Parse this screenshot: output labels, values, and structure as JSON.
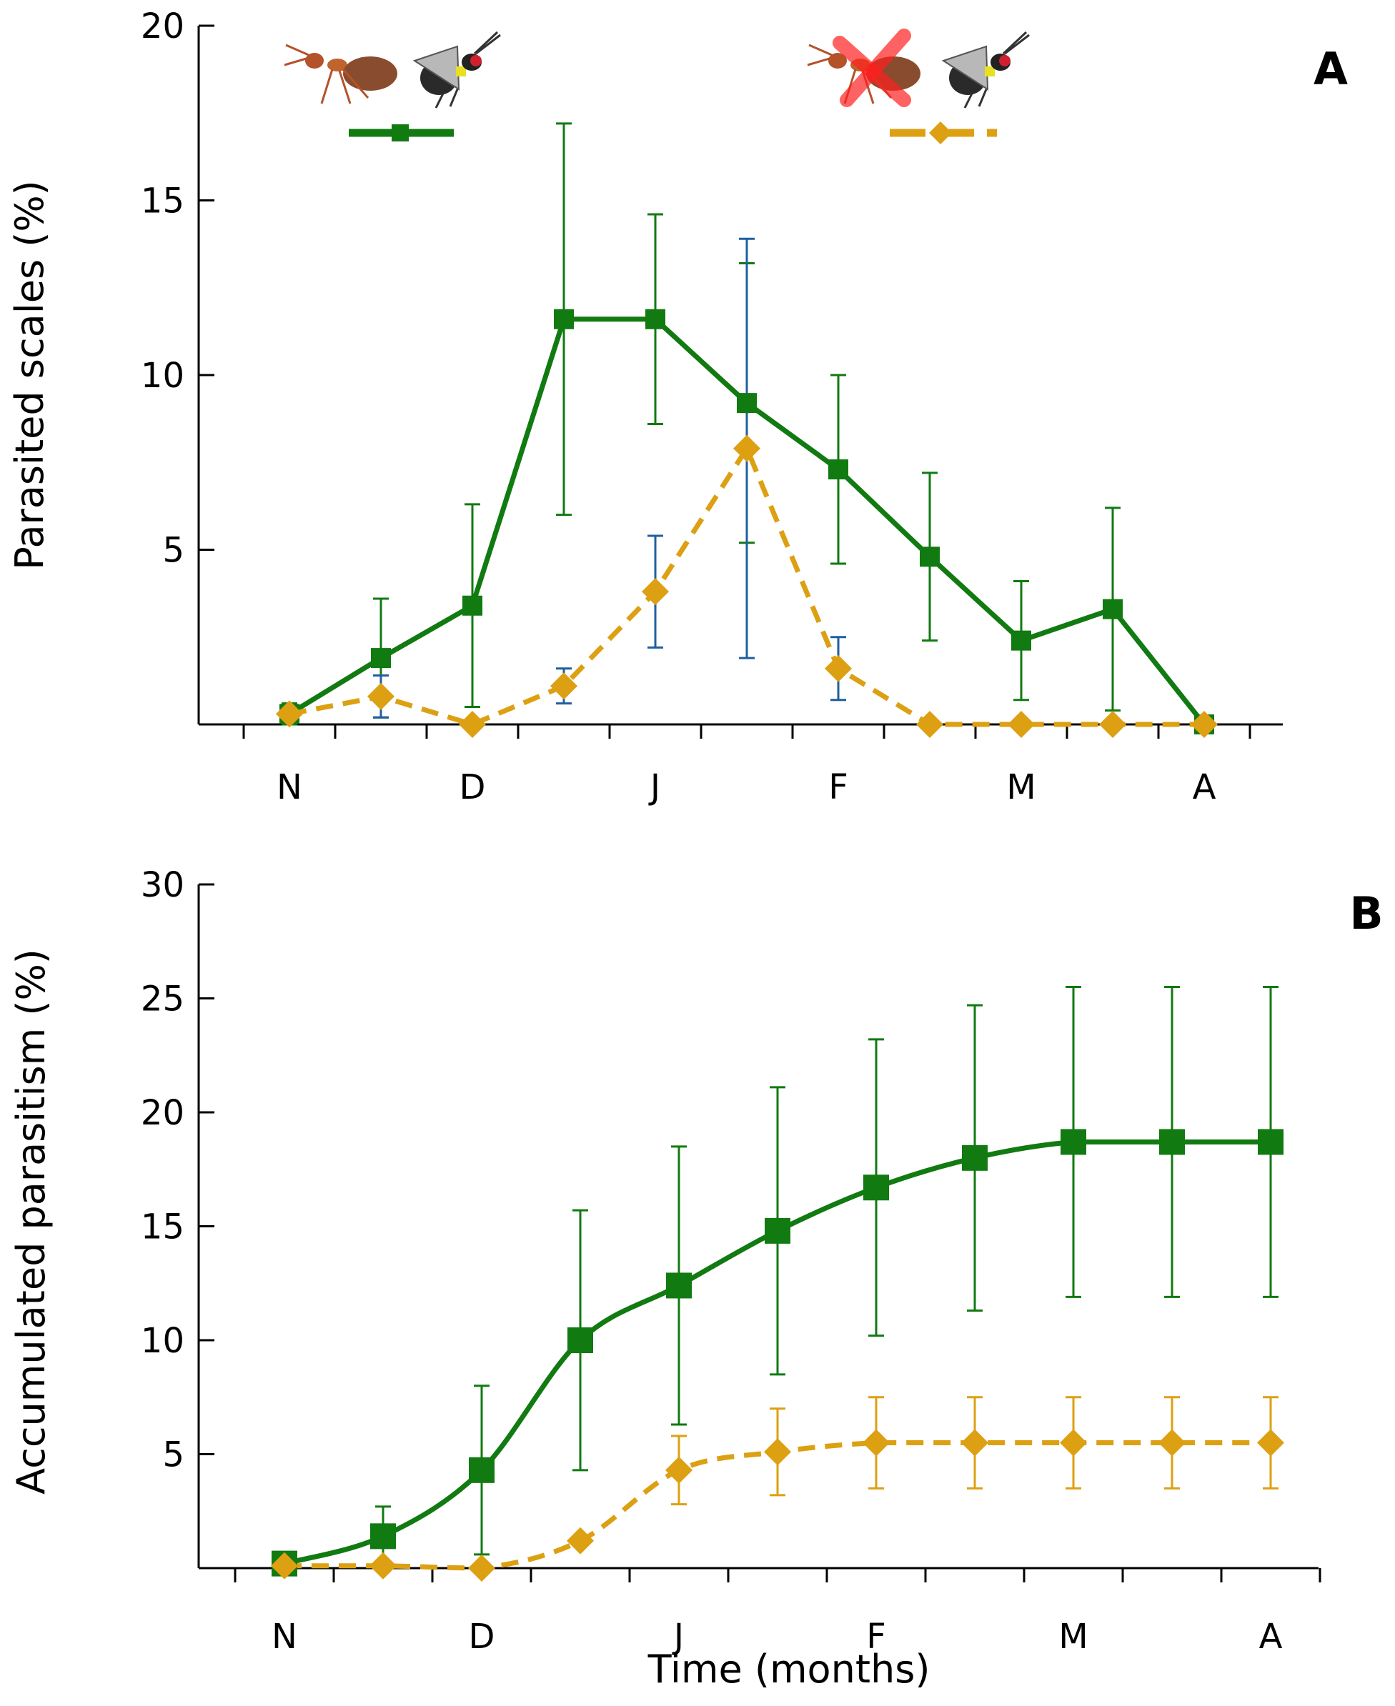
{
  "figure": {
    "xlabel": "Time (months)"
  },
  "chart_data": [
    {
      "type": "line",
      "panel": "A",
      "title": "",
      "xlabel": "",
      "ylabel": "Parasited scales (%)",
      "ylim": [
        0,
        20
      ],
      "yticks": [
        5,
        10,
        15,
        20
      ],
      "ytick_labels": [
        "5",
        "10",
        "15",
        "20"
      ],
      "month_labels": [
        "N",
        "D",
        "J",
        "F",
        "M",
        "A"
      ],
      "x": [
        0,
        0.5,
        1,
        1.5,
        2,
        2.5,
        3,
        3.5,
        4,
        4.5,
        5
      ],
      "legend": "top (icons)",
      "legend_icons": [
        "ant-with-parasitoid",
        "ant-excluded-with-parasitoid"
      ],
      "series": [
        {
          "name": "ants present",
          "color": "#117a11",
          "errcolor": "#117a11",
          "marker": "square",
          "dashed": false,
          "smooth": false,
          "values": [
            0.3,
            1.9,
            3.4,
            11.6,
            11.6,
            9.2,
            7.3,
            4.8,
            2.4,
            3.3,
            0
          ],
          "errors": [
            0.3,
            1.7,
            2.9,
            5.6,
            3.0,
            4.0,
            2.7,
            2.4,
            1.7,
            2.9,
            0
          ]
        },
        {
          "name": "ants excluded",
          "color": "#dca012",
          "errcolor": "#1f5fa0",
          "marker": "diamond",
          "dashed": true,
          "smooth": false,
          "values": [
            0.3,
            0.8,
            0,
            1.1,
            3.8,
            7.9,
            1.6,
            0,
            0,
            0,
            0
          ],
          "errors": [
            0,
            0.6,
            0,
            0.5,
            1.6,
            6.0,
            0.9,
            0,
            0,
            0,
            0
          ]
        }
      ]
    },
    {
      "type": "line",
      "panel": "B",
      "title": "",
      "xlabel": "Time (months)",
      "ylabel": "Accumulated parasitism (%)",
      "ylim": [
        0,
        30
      ],
      "yticks": [
        5,
        10,
        15,
        20,
        25,
        30
      ],
      "ytick_labels": [
        "5",
        "10",
        "15",
        "20",
        "25",
        "30"
      ],
      "month_labels": [
        "N",
        "D",
        "J",
        "F",
        "M",
        "A"
      ],
      "x": [
        0,
        0.5,
        1,
        1.5,
        2,
        2.5,
        3,
        3.5,
        4,
        4.5,
        5
      ],
      "series": [
        {
          "name": "ants present",
          "color": "#117a11",
          "errcolor": "#117a11",
          "marker": "square",
          "dashed": false,
          "smooth": true,
          "values": [
            0.2,
            1.4,
            4.3,
            10.0,
            12.4,
            14.8,
            16.7,
            18.0,
            18.7,
            18.7,
            18.7
          ],
          "errors": [
            0.2,
            1.3,
            3.7,
            5.7,
            6.1,
            6.3,
            6.5,
            6.7,
            6.8,
            6.8,
            6.8
          ]
        },
        {
          "name": "ants excluded",
          "color": "#dca012",
          "errcolor": "#dca012",
          "marker": "diamond",
          "dashed": true,
          "smooth": true,
          "values": [
            0.1,
            0.1,
            0,
            1.2,
            4.3,
            5.1,
            5.5,
            5.5,
            5.5,
            5.5,
            5.5
          ],
          "errors": [
            0,
            0,
            0,
            0,
            1.5,
            1.9,
            2.0,
            2.0,
            2.0,
            2.0,
            2.0
          ]
        }
      ]
    }
  ]
}
